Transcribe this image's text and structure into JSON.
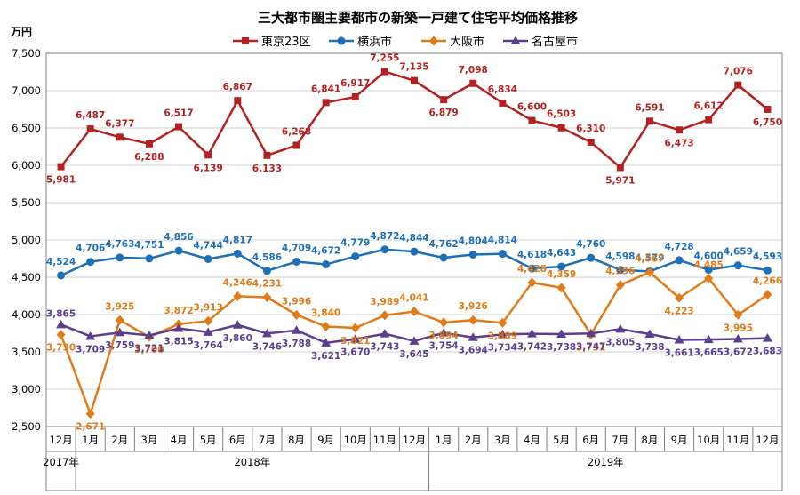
{
  "chart_data": {
    "type": "line",
    "title": "三大都市圏主要都市の新築一戸建て住宅平均価格推移",
    "ylabel": "万円",
    "ylim": [
      2500,
      7500
    ],
    "yticks": [
      2500,
      3000,
      3500,
      4000,
      4500,
      5000,
      5500,
      6000,
      6500,
      7000,
      7500
    ],
    "ytick_labels": [
      "2,500",
      "3,000",
      "3,500",
      "4,000",
      "4,500",
      "5,000",
      "5,500",
      "6,000",
      "6,500",
      "7,000",
      "7,500"
    ],
    "categories": [
      "12月",
      "1月",
      "2月",
      "3月",
      "4月",
      "5月",
      "6月",
      "7月",
      "8月",
      "9月",
      "10月",
      "11月",
      "12月",
      "1月",
      "2月",
      "3月",
      "4月",
      "5月",
      "6月",
      "7月",
      "8月",
      "9月",
      "10月",
      "11月",
      "12月"
    ],
    "year_groups": [
      {
        "label": "2017年",
        "count": 1
      },
      {
        "label": "2018年",
        "count": 12
      },
      {
        "label": "2019年",
        "count": 12
      }
    ],
    "series": [
      {
        "name": "東京23区",
        "color": "#b22222",
        "marker": "square",
        "values": [
          5981,
          6487,
          6377,
          6288,
          6517,
          6139,
          6867,
          6133,
          6268,
          6841,
          6917,
          7255,
          7135,
          6879,
          7098,
          6834,
          6600,
          6503,
          6310,
          5971,
          6591,
          6473,
          6612,
          7076,
          6750
        ],
        "labels": [
          "5,981",
          "6,487",
          "6,377",
          "6,288",
          "6,517",
          "6,139",
          "6,867",
          "6,133",
          "6,268",
          "6,841",
          "6,917",
          "7,255",
          "7,135",
          "6,879",
          "7,098",
          "6,834",
          "6,600",
          "6,503",
          "6,310",
          "5,971",
          "6,591",
          "6,473",
          "6,612",
          "7,076",
          "6,750"
        ]
      },
      {
        "name": "横浜市",
        "color": "#1f6fb5",
        "marker": "circle",
        "values": [
          4524,
          4706,
          4763,
          4751,
          4856,
          4744,
          4817,
          4586,
          4709,
          4672,
          4779,
          4872,
          4844,
          4762,
          4804,
          4814,
          4618,
          4643,
          4760,
          4598,
          4579,
          4728,
          4600,
          4659,
          4593
        ],
        "labels": [
          "4,524",
          "4,706",
          "4,763",
          "4,751",
          "4,856",
          "4,744",
          "4,817",
          "4,586",
          "4,709",
          "4,672",
          "4,779",
          "4,872",
          "4,844",
          "4,762",
          "4,804",
          "4,814",
          "4,618",
          "4,643",
          "4,760",
          "4,598",
          "4,579",
          "4,728",
          "4,600",
          "4,659",
          "4,593"
        ]
      },
      {
        "name": "大阪市",
        "color": "#e07b1a",
        "marker": "diamond",
        "values": [
          3730,
          2671,
          3925,
          3700,
          3872,
          3913,
          4246,
          4231,
          3996,
          3840,
          3821,
          3989,
          4041,
          3894,
          3926,
          3889,
          4428,
          4359,
          3731,
          4396,
          4567,
          4223,
          4485,
          3995,
          4266
        ],
        "labels": [
          "3,730",
          "2,671",
          "3,925",
          "3,700",
          "3,872",
          "3,913",
          "4,246",
          "4,231",
          "3,996",
          "3,840",
          "3,821",
          "3,989",
          "4,041",
          "3,894",
          "3,926",
          "3,889",
          "4,428",
          "4,359",
          "3,731",
          "4,396",
          "4,567",
          "4,223",
          "4,485",
          "3,995",
          "4,266"
        ]
      },
      {
        "name": "名古屋市",
        "color": "#5b3f8c",
        "marker": "triangle",
        "values": [
          3865,
          3709,
          3759,
          3721,
          3815,
          3764,
          3860,
          3746,
          3788,
          3621,
          3670,
          3743,
          3645,
          3754,
          3694,
          3734,
          3742,
          3738,
          3747,
          3805,
          3738,
          3661,
          3665,
          3672,
          3683
        ],
        "labels": [
          "3,865",
          "3,709",
          "3,759",
          "3,721",
          "3,815",
          "3,764",
          "3,860",
          "3,746",
          "3,788",
          "3,621",
          "3,670",
          "3,743",
          "3,645",
          "3,754",
          "3,694",
          "3,734",
          "3,742",
          "3,738",
          "3,747",
          "3,805",
          "3,738",
          "3,661",
          "3,665",
          "3,672",
          "3,683"
        ]
      }
    ],
    "grid": true,
    "legend": "top"
  }
}
